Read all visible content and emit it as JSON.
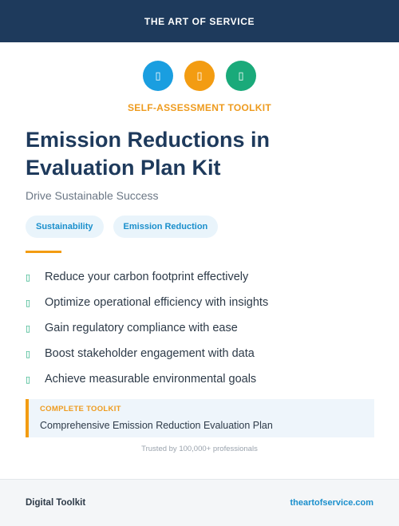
{
  "header": {
    "brand": "THE ART OF SERVICE"
  },
  "icons": [
    {
      "name": "placeholder-glyph-icon",
      "glyph": "▯",
      "color": "#1a9ee0"
    },
    {
      "name": "placeholder-glyph-icon",
      "glyph": "▯",
      "color": "#f39c12"
    },
    {
      "name": "placeholder-glyph-icon",
      "glyph": "▯",
      "color": "#1aaa7a"
    }
  ],
  "kicker": "SELF-ASSESSMENT TOOLKIT",
  "title": "Emission Reductions in Evaluation Plan Kit",
  "subtitle": "Drive Sustainable Success",
  "tags": [
    "Sustainability",
    "Emission Reduction"
  ],
  "benefits": [
    {
      "glyph": "▯",
      "text": "Reduce your carbon footprint effectively"
    },
    {
      "glyph": "▯",
      "text": "Optimize operational efficiency with insights"
    },
    {
      "glyph": "▯",
      "text": "Gain regulatory compliance with ease"
    },
    {
      "glyph": "▯",
      "text": "Boost stakeholder engagement with data"
    },
    {
      "glyph": "▯",
      "text": "Achieve measurable environmental goals"
    }
  ],
  "toolkit": {
    "label": "COMPLETE TOOLKIT",
    "name": "Comprehensive Emission Reduction Evaluation Plan"
  },
  "trust": "Trusted by 100,000+ professionals",
  "footer": {
    "left": "Digital Toolkit",
    "right": "theartofservice.com"
  },
  "colors": {
    "navy": "#1e3a5c",
    "accent_orange": "#f39c12",
    "accent_blue": "#1a9ee0",
    "accent_green": "#1aaa7a"
  }
}
